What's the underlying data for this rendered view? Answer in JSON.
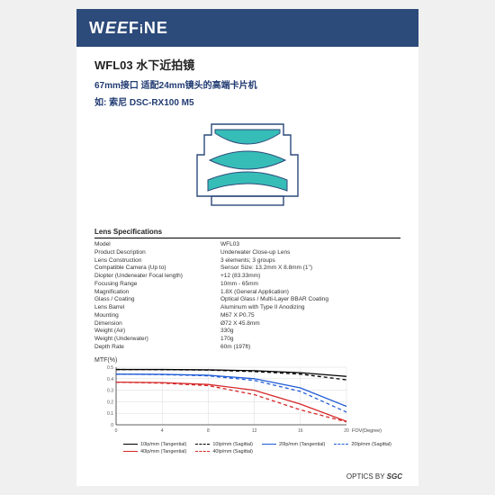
{
  "logo": "WEEFiNE",
  "title": "WFL03 水下近拍镜",
  "subtitle1": "67mm接口 适配24mm镜头的高端卡片机",
  "subtitle2": "如: 索尼 DSC-RX100 M5",
  "diagram": {
    "stroke": "#2c4a7a",
    "fill": "#37bdb8",
    "width": 140,
    "height": 105
  },
  "specs_title": "Lens Specifications",
  "specs": [
    {
      "label": "Model",
      "value": "WFL03"
    },
    {
      "label": "Product Description",
      "value": "Underwater Close-up Lens"
    },
    {
      "label": "Lens Construction",
      "value": "3 elements; 3 groups"
    },
    {
      "label": "",
      "value": ""
    },
    {
      "label": "Compatible Camera (Up to)",
      "value": "Sensor Size: 13.2mm X 8.8mm (1\")"
    },
    {
      "label": "",
      "value": ""
    },
    {
      "label": "Diopter (Underwater Focal length)",
      "value": "+12 (83.33mm)"
    },
    {
      "label": "Focusing Range",
      "value": "10mm - 65mm"
    },
    {
      "label": "Magnification",
      "value": "1.8X (General Application)"
    },
    {
      "label": "Glass / Coating",
      "value": "Optical Glass / Multi-Layer BBAR Coating"
    },
    {
      "label": "Lens Barrel",
      "value": "Aluminum with Type II Anodizing"
    },
    {
      "label": "Mounting",
      "value": "M67 X P0.75"
    },
    {
      "label": "Dimension",
      "value": "Ø72 X 45.8mm"
    },
    {
      "label": "Weight (Air)",
      "value": "330g"
    },
    {
      "label": "Weight (Underwater)",
      "value": "170g"
    },
    {
      "label": "Depth Rate",
      "value": "60m (197ft)"
    }
  ],
  "chart": {
    "title": "MTF(%)",
    "xlabel": "FOV(Degree)",
    "ylim": [
      0,
      1
    ],
    "yticks": [
      0,
      0.1,
      0.2,
      0.3,
      0.4,
      0.5
    ],
    "xlim": [
      0,
      20
    ],
    "xticks": [
      0,
      4,
      8,
      12,
      16,
      20
    ],
    "grid_color": "#d9d9d9",
    "axis_color": "#888",
    "bg": "#ffffff",
    "series": [
      {
        "name": "10lp/mm (Tangential)",
        "color": "#000000",
        "dash": "solid",
        "points": [
          [
            0,
            0.48
          ],
          [
            4,
            0.48
          ],
          [
            8,
            0.477
          ],
          [
            12,
            0.47
          ],
          [
            16,
            0.452
          ],
          [
            20,
            0.42
          ]
        ]
      },
      {
        "name": "10lp/mm (Sagittal)",
        "color": "#000000",
        "dash": "dashed",
        "points": [
          [
            0,
            0.48
          ],
          [
            4,
            0.479
          ],
          [
            8,
            0.475
          ],
          [
            12,
            0.462
          ],
          [
            16,
            0.44
          ],
          [
            20,
            0.39
          ]
        ]
      },
      {
        "name": "20lp/mm (Tangential)",
        "color": "#1f5bd6",
        "dash": "solid",
        "points": [
          [
            0,
            0.44
          ],
          [
            4,
            0.438
          ],
          [
            8,
            0.43
          ],
          [
            12,
            0.4
          ],
          [
            16,
            0.32
          ],
          [
            20,
            0.16
          ]
        ]
      },
      {
        "name": "20lp/mm (Sagittal)",
        "color": "#1f5bd6",
        "dash": "dashed",
        "points": [
          [
            0,
            0.44
          ],
          [
            4,
            0.436
          ],
          [
            8,
            0.425
          ],
          [
            12,
            0.385
          ],
          [
            16,
            0.29
          ],
          [
            20,
            0.11
          ]
        ]
      },
      {
        "name": "40lp/mm (Tangential)",
        "color": "#d62728",
        "dash": "solid",
        "points": [
          [
            0,
            0.37
          ],
          [
            4,
            0.366
          ],
          [
            8,
            0.35
          ],
          [
            12,
            0.3
          ],
          [
            16,
            0.18
          ],
          [
            20,
            0.03
          ]
        ]
      },
      {
        "name": "40lp/mm (Sagittal)",
        "color": "#d62728",
        "dash": "dashed",
        "points": [
          [
            0,
            0.37
          ],
          [
            4,
            0.362
          ],
          [
            8,
            0.34
          ],
          [
            12,
            0.262
          ],
          [
            16,
            0.13
          ],
          [
            20,
            0.025
          ]
        ]
      }
    ]
  },
  "footer": "OPTICS BY SGC"
}
